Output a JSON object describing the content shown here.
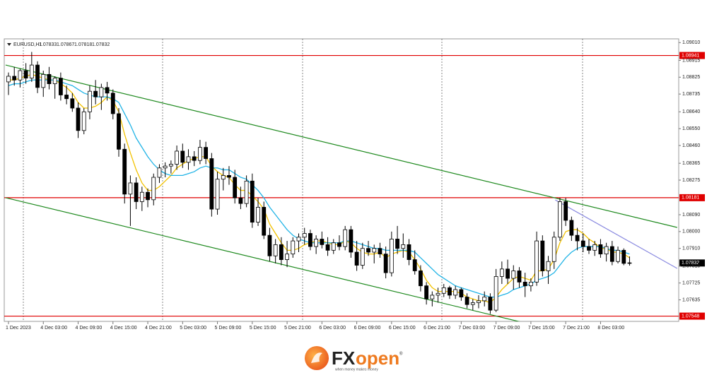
{
  "chart_data": {
    "type": "candlestick",
    "symbol": "EURUSD,H1",
    "categories": [
      "1 Dec 2023",
      null,
      null,
      null,
      null,
      null,
      "4 Dec 03:00",
      null,
      null,
      null,
      null,
      null,
      "4 Dec 09:00",
      null,
      null,
      null,
      null,
      null,
      "4 Dec 15:00",
      null,
      null,
      null,
      null,
      null,
      "4 Dec 21:00",
      null,
      null,
      null,
      null,
      null,
      "5 Dec 03:00",
      null,
      null,
      null,
      null,
      null,
      "5 Dec 09:00",
      null,
      null,
      null,
      null,
      null,
      "5 Dec 15:00",
      null,
      null,
      null,
      null,
      null,
      "5 Dec 21:00",
      null,
      null,
      null,
      null,
      null,
      "6 Dec 03:00",
      null,
      null,
      null,
      null,
      null,
      "6 Dec 09:00",
      null,
      null,
      null,
      null,
      null,
      "6 Dec 15:00",
      null,
      null,
      null,
      null,
      null,
      "6 Dec 21:00",
      null,
      null,
      null,
      null,
      null,
      "7 Dec 03:00",
      null,
      null,
      null,
      null,
      null,
      "7 Dec 09:00",
      null,
      null,
      null,
      null,
      null,
      "7 Dec 15:00",
      null,
      null,
      null,
      null,
      null,
      "7 Dec 21:00",
      null,
      null,
      null,
      null,
      null,
      "8 Dec 03:00",
      null,
      null,
      null,
      null,
      null
    ],
    "ohlc": [
      [
        1.088,
        1.0885,
        1.0873,
        1.0883
      ],
      [
        1.0883,
        1.0888,
        1.0878,
        1.0881
      ],
      [
        1.0881,
        1.0887,
        1.0877,
        1.0886
      ],
      [
        1.0886,
        1.089,
        1.0879,
        1.0882
      ],
      [
        1.0882,
        1.0896,
        1.088,
        1.0889
      ],
      [
        1.0889,
        1.0891,
        1.0874,
        1.0877
      ],
      [
        1.0877,
        1.0886,
        1.0872,
        1.0884
      ],
      [
        1.0884,
        1.0888,
        1.0876,
        1.0879
      ],
      [
        1.0879,
        1.0883,
        1.0871,
        1.0882
      ],
      [
        1.0882,
        1.0885,
        1.087,
        1.0873
      ],
      [
        1.0873,
        1.0878,
        1.0868,
        1.0871
      ],
      [
        1.0871,
        1.0874,
        1.0864,
        1.0866
      ],
      [
        1.0866,
        1.0869,
        1.085,
        1.0854
      ],
      [
        1.0854,
        1.0866,
        1.0852,
        1.0864
      ],
      [
        1.0864,
        1.0878,
        1.086,
        1.0875
      ],
      [
        1.0875,
        1.0881,
        1.0868,
        1.0872
      ],
      [
        1.0872,
        1.0879,
        1.0865,
        1.0877
      ],
      [
        1.0877,
        1.088,
        1.087,
        1.0874
      ],
      [
        1.0874,
        1.0876,
        1.086,
        1.0863
      ],
      [
        1.0863,
        1.0866,
        1.084,
        1.0844
      ],
      [
        1.0844,
        1.0847,
        1.0815,
        1.082
      ],
      [
        1.082,
        1.083,
        1.0803,
        1.0826
      ],
      [
        1.0826,
        1.0829,
        1.0812,
        1.0816
      ],
      [
        1.0816,
        1.0824,
        1.0811,
        1.0821
      ],
      [
        1.0821,
        1.0823,
        1.0813,
        1.0817
      ],
      [
        1.0817,
        1.0831,
        1.0814,
        1.0829
      ],
      [
        1.0829,
        1.0836,
        1.0826,
        1.0834
      ],
      [
        1.0834,
        1.0837,
        1.0829,
        1.0835
      ],
      [
        1.0835,
        1.0838,
        1.0831,
        1.0836
      ],
      [
        1.0836,
        1.0846,
        1.0833,
        1.0843
      ],
      [
        1.0843,
        1.0847,
        1.0834,
        1.0837
      ],
      [
        1.0837,
        1.0844,
        1.0833,
        1.084
      ],
      [
        1.084,
        1.0843,
        1.0835,
        1.0838
      ],
      [
        1.0838,
        1.0849,
        1.0836,
        1.0845
      ],
      [
        1.0845,
        1.0848,
        1.0836,
        1.0839
      ],
      [
        1.0839,
        1.0842,
        1.0808,
        1.0812
      ],
      [
        1.0812,
        1.0832,
        1.0809,
        1.0828
      ],
      [
        1.0828,
        1.0834,
        1.0822,
        1.083
      ],
      [
        1.083,
        1.0835,
        1.0825,
        1.0829
      ],
      [
        1.0829,
        1.0833,
        1.0815,
        1.0818
      ],
      [
        1.0818,
        1.0824,
        1.0812,
        1.0815
      ],
      [
        1.0815,
        1.083,
        1.0813,
        1.0827
      ],
      [
        1.0827,
        1.0831,
        1.0802,
        1.0805
      ],
      [
        1.0805,
        1.0818,
        1.0803,
        1.0813
      ],
      [
        1.0813,
        1.0816,
        1.0796,
        1.0798
      ],
      [
        1.0798,
        1.0802,
        1.0784,
        1.0787
      ],
      [
        1.0787,
        1.0796,
        1.0783,
        1.0793
      ],
      [
        1.0793,
        1.0797,
        1.0782,
        1.0785
      ],
      [
        1.0785,
        1.0795,
        1.0781,
        1.0788
      ],
      [
        1.0788,
        1.0797,
        1.0786,
        1.0795
      ],
      [
        1.0795,
        1.0799,
        1.0789,
        1.0797
      ],
      [
        1.0797,
        1.0802,
        1.0793,
        1.0799
      ],
      [
        1.0799,
        1.0801,
        1.079,
        1.0792
      ],
      [
        1.0792,
        1.0798,
        1.0788,
        1.0796
      ],
      [
        1.0796,
        1.08,
        1.0791,
        1.0793
      ],
      [
        1.0793,
        1.0797,
        1.0787,
        1.079
      ],
      [
        1.079,
        1.0796,
        1.0788,
        1.0794
      ],
      [
        1.0794,
        1.0798,
        1.079,
        1.0792
      ],
      [
        1.0792,
        1.0803,
        1.079,
        1.0801
      ],
      [
        1.0801,
        1.0803,
        1.0786,
        1.0789
      ],
      [
        1.0789,
        1.0795,
        1.0779,
        1.0782
      ],
      [
        1.0782,
        1.0794,
        1.078,
        1.0791
      ],
      [
        1.0791,
        1.0795,
        1.0787,
        1.0789
      ],
      [
        1.0789,
        1.0793,
        1.0783,
        1.0791
      ],
      [
        1.0791,
        1.0794,
        1.0786,
        1.0788
      ],
      [
        1.0788,
        1.0792,
        1.0775,
        1.0778
      ],
      [
        1.0778,
        1.08,
        1.0776,
        1.0796
      ],
      [
        1.0796,
        1.0803,
        1.0788,
        1.0791
      ],
      [
        1.0791,
        1.0799,
        1.0786,
        1.0793
      ],
      [
        1.0793,
        1.0796,
        1.0782,
        1.0785
      ],
      [
        1.0785,
        1.079,
        1.0777,
        1.0779
      ],
      [
        1.0779,
        1.0782,
        1.0768,
        1.0771
      ],
      [
        1.0771,
        1.0773,
        1.0761,
        1.0764
      ],
      [
        1.0764,
        1.0768,
        1.076,
        1.0766
      ],
      [
        1.0766,
        1.077,
        1.0762,
        1.0767
      ],
      [
        1.0767,
        1.0772,
        1.0765,
        1.077
      ],
      [
        1.077,
        1.0771,
        1.0764,
        1.0766
      ],
      [
        1.0766,
        1.0771,
        1.0764,
        1.0769
      ],
      [
        1.0769,
        1.077,
        1.0763,
        1.0765
      ],
      [
        1.0765,
        1.0767,
        1.0759,
        1.0761
      ],
      [
        1.0761,
        1.0764,
        1.0758,
        1.0762
      ],
      [
        1.0762,
        1.0766,
        1.0759,
        1.0763
      ],
      [
        1.0763,
        1.0768,
        1.076,
        1.0765
      ],
      [
        1.0765,
        1.0767,
        1.0756,
        1.0758
      ],
      [
        1.0758,
        1.078,
        1.0757,
        1.0776
      ],
      [
        1.0776,
        1.0784,
        1.0772,
        1.078
      ],
      [
        1.078,
        1.0785,
        1.0772,
        1.0775
      ],
      [
        1.0775,
        1.0782,
        1.0769,
        1.0779
      ],
      [
        1.0779,
        1.0781,
        1.077,
        1.0773
      ],
      [
        1.0773,
        1.0778,
        1.0765,
        1.0771
      ],
      [
        1.0771,
        1.0775,
        1.0768,
        1.0773
      ],
      [
        1.0773,
        1.08,
        1.0771,
        1.0795
      ],
      [
        1.0795,
        1.0798,
        1.0776,
        1.0779
      ],
      [
        1.0779,
        1.0787,
        1.0772,
        1.0784
      ],
      [
        1.0784,
        1.08,
        1.078,
        1.0797
      ],
      [
        1.0797,
        1.0818,
        1.0795,
        1.0816
      ],
      [
        1.0816,
        1.0818,
        1.0803,
        1.0806
      ],
      [
        1.0806,
        1.0808,
        1.0795,
        1.0798
      ],
      [
        1.0798,
        1.0802,
        1.079,
        1.0795
      ],
      [
        1.0795,
        1.0799,
        1.0789,
        1.0792
      ],
      [
        1.0792,
        1.0796,
        1.0788,
        1.079
      ],
      [
        1.079,
        1.0795,
        1.0787,
        1.0793
      ],
      [
        1.0793,
        1.0796,
        1.0786,
        1.0788
      ],
      [
        1.0788,
        1.0794,
        1.0784,
        1.0792
      ],
      [
        1.0792,
        1.0795,
        1.0782,
        1.0784
      ],
      [
        1.0784,
        1.0792,
        1.0783,
        1.079
      ],
      [
        1.079,
        1.0791,
        1.0782,
        1.0783
      ],
      [
        1.07833,
        1.07867,
        1.07818,
        1.07832
      ]
    ],
    "up_color": "#ffffff",
    "down_color": "#000000",
    "series": [
      {
        "color": "#f2c200",
        "values": [
          1.0881,
          1.0881,
          1.0882,
          1.0883,
          1.0884,
          1.0883,
          1.0882,
          1.0881,
          1.0881,
          1.0879,
          1.0877,
          1.0874,
          1.0869,
          1.0866,
          1.0866,
          1.0867,
          1.0869,
          1.0872,
          1.087,
          1.0864,
          1.0852,
          1.0842,
          1.0833,
          1.0826,
          1.0822,
          1.0822,
          1.0824,
          1.0827,
          1.083,
          1.0834,
          1.0836,
          1.0838,
          1.0839,
          1.084,
          1.084,
          1.0835,
          1.0832,
          1.083,
          1.0829,
          1.0825,
          1.0822,
          1.0822,
          1.0819,
          1.0816,
          1.0812,
          1.0804,
          1.0799,
          1.0794,
          1.079,
          1.079,
          1.0791,
          1.0793,
          1.0794,
          1.0795,
          1.0795,
          1.0794,
          1.0793,
          1.0793,
          1.0795,
          1.0794,
          1.0791,
          1.0789,
          1.0788,
          1.0788,
          1.0789,
          1.0786,
          1.0788,
          1.0789,
          1.079,
          1.0789,
          1.0785,
          1.078,
          1.0774,
          1.077,
          1.0768,
          1.0768,
          1.0768,
          1.0768,
          1.0767,
          1.0765,
          1.0764,
          1.0763,
          1.0763,
          1.0762,
          1.0765,
          1.0769,
          1.0772,
          1.0775,
          1.0776,
          1.0775,
          1.0774,
          1.0779,
          1.0779,
          1.078,
          1.0785,
          1.0794,
          1.08,
          1.0801,
          1.0801,
          1.0799,
          1.0796,
          1.0794,
          1.0791,
          1.0791,
          1.0789,
          1.0789,
          1.0788,
          1.0786
        ]
      },
      {
        "color": "#22b4e6",
        "values": [
          1.0878,
          1.0879,
          1.0879,
          1.088,
          1.0881,
          1.0881,
          1.0881,
          1.0881,
          1.0881,
          1.088,
          1.0879,
          1.0878,
          1.0876,
          1.0874,
          1.0873,
          1.0872,
          1.0872,
          1.0872,
          1.0871,
          1.0869,
          1.0863,
          1.0857,
          1.085,
          1.0845,
          1.084,
          1.0836,
          1.0833,
          1.0831,
          1.083,
          1.083,
          1.083,
          1.0831,
          1.0832,
          1.0834,
          1.0835,
          1.0834,
          1.0834,
          1.0833,
          1.0833,
          1.0831,
          1.0829,
          1.0828,
          1.0825,
          1.0822,
          1.0818,
          1.0813,
          1.0809,
          1.0805,
          1.0801,
          1.0798,
          1.0796,
          1.0795,
          1.0794,
          1.0794,
          1.0794,
          1.0794,
          1.0794,
          1.0794,
          1.0795,
          1.0795,
          1.0794,
          1.0793,
          1.0792,
          1.0791,
          1.0791,
          1.079,
          1.079,
          1.079,
          1.079,
          1.079,
          1.0789,
          1.0786,
          1.0783,
          1.078,
          1.0777,
          1.0775,
          1.0773,
          1.0771,
          1.077,
          1.0769,
          1.0768,
          1.0767,
          1.0766,
          1.0765,
          1.0765,
          1.0766,
          1.0767,
          1.0769,
          1.077,
          1.0771,
          1.0772,
          1.0774,
          1.0775,
          1.0776,
          1.0778,
          1.0782,
          1.0786,
          1.0789,
          1.0791,
          1.0792,
          1.0792,
          1.0792,
          1.0792,
          1.0791,
          1.079,
          1.079,
          1.0789,
          1.0788
        ]
      }
    ],
    "ylim": [
      1.0752,
      1.0903
    ],
    "yticks": [
      {
        "value": 1.0901,
        "label": "1.09010"
      },
      1.08915,
      1.08825,
      1.08735,
      {
        "value": 1.0864,
        "label": "1.08640"
      },
      {
        "value": 1.0855,
        "label": "1.08550"
      },
      {
        "value": 1.0846,
        "label": "1.08460"
      },
      1.08365,
      1.08275,
      {
        "value": 1.0809,
        "label": "1.08090"
      },
      {
        "value": 1.08,
        "label": "1.08000"
      },
      {
        "value": 1.0791,
        "label": "1.07910"
      },
      1.07815,
      1.07725,
      1.07635
    ],
    "levels": [
      {
        "value": 1.08941,
        "color": "#e00000"
      },
      {
        "value": 1.08181,
        "color": "#e00000"
      },
      {
        "value": 1.07548,
        "color": "#e00000"
      }
    ],
    "trendlines": [
      {
        "from": [
          -0.5,
          1.0889
        ],
        "to": [
          115.2,
          1.08022
        ],
        "color": "#1f8a1f"
      },
      {
        "from": [
          -0.5,
          1.08181
        ],
        "to": [
          89.3,
          1.07509
        ],
        "color": "#1f8a1f"
      },
      {
        "from": [
          94.2,
          1.08169
        ],
        "to": [
          115.2,
          1.07803
        ],
        "color": "#8a8ae0"
      }
    ]
  },
  "brand": {
    "name_first": "FX",
    "name_second": "open",
    "registered": "®",
    "tagline": "when money makes money"
  }
}
